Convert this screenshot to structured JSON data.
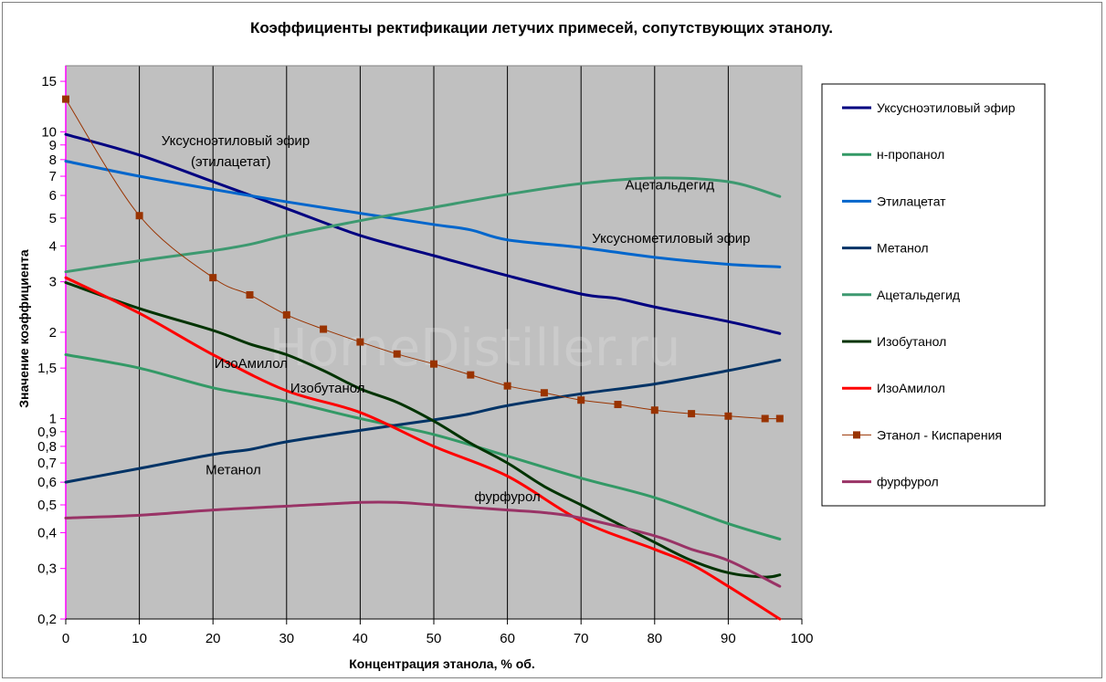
{
  "chart_data": {
    "type": "line",
    "title": "Коэффициенты ректификации летучих примесей, сопутствующих этанолу.",
    "xlabel": "Концентрация этанола, % об.",
    "ylabel": "Значение коэффициента",
    "xlim": [
      0,
      100
    ],
    "ylim": [
      0.2,
      17
    ],
    "y_scale": "log",
    "grid": "vertical lines at every 10",
    "legend": "right",
    "watermark": "HomeDistiller.ru",
    "x_ticks": [
      "0",
      "10",
      "20",
      "30",
      "40",
      "50",
      "60",
      "70",
      "80",
      "90",
      "100"
    ],
    "y_ticks": [
      {
        "v": 0.2,
        "t": "0,2"
      },
      {
        "v": 0.3,
        "t": "0,3"
      },
      {
        "v": 0.4,
        "t": "0,4"
      },
      {
        "v": 0.5,
        "t": "0,5"
      },
      {
        "v": 0.6,
        "t": "0,6"
      },
      {
        "v": 0.7,
        "t": "0,7"
      },
      {
        "v": 0.8,
        "t": "0,8"
      },
      {
        "v": 0.9,
        "t": "0,9"
      },
      {
        "v": 1,
        "t": "1"
      },
      {
        "v": 1.5,
        "t": "1,5"
      },
      {
        "v": 2,
        "t": "2"
      },
      {
        "v": 3,
        "t": "3"
      },
      {
        "v": 4,
        "t": "4"
      },
      {
        "v": 5,
        "t": "5"
      },
      {
        "v": 6,
        "t": "6"
      },
      {
        "v": 7,
        "t": "7"
      },
      {
        "v": 8,
        "t": "8"
      },
      {
        "v": 9,
        "t": "9"
      },
      {
        "v": 10,
        "t": "10"
      },
      {
        "v": 15,
        "t": "15"
      }
    ],
    "series": [
      {
        "name": "Уксусноэтиловый эфир",
        "color": "#000080",
        "width": 3,
        "x": [
          0,
          10,
          20,
          30,
          40,
          50,
          60,
          70,
          75,
          80,
          90,
          97
        ],
        "y": [
          9.8,
          8.3,
          6.7,
          5.4,
          4.35,
          3.7,
          3.15,
          2.72,
          2.62,
          2.45,
          2.18,
          1.98
        ]
      },
      {
        "name": "н-пропанол",
        "color": "#339966",
        "width": 3,
        "x": [
          0,
          10,
          20,
          30,
          40,
          50,
          60,
          70,
          80,
          90,
          97
        ],
        "y": [
          1.67,
          1.5,
          1.28,
          1.15,
          1.0,
          0.88,
          0.74,
          0.62,
          0.53,
          0.43,
          0.38
        ]
      },
      {
        "name": "Этилацетат",
        "color": "#0066CC",
        "width": 3,
        "x": [
          0,
          10,
          20,
          30,
          40,
          50,
          55,
          60,
          70,
          80,
          90,
          97
        ],
        "y": [
          7.9,
          7.0,
          6.3,
          5.7,
          5.2,
          4.75,
          4.55,
          4.2,
          3.95,
          3.65,
          3.45,
          3.38
        ]
      },
      {
        "name": "Метанол",
        "color": "#003366",
        "width": 3,
        "x": [
          0,
          10,
          20,
          25,
          30,
          40,
          50,
          55,
          60,
          70,
          80,
          90,
          97
        ],
        "y": [
          0.6,
          0.67,
          0.75,
          0.78,
          0.83,
          0.91,
          0.99,
          1.04,
          1.11,
          1.22,
          1.32,
          1.47,
          1.6
        ]
      },
      {
        "name": "Ацетальдегид",
        "color": "#3D9970",
        "width": 3,
        "x": [
          0,
          10,
          20,
          25,
          30,
          40,
          50,
          60,
          70,
          80,
          90,
          97
        ],
        "y": [
          3.25,
          3.55,
          3.85,
          4.05,
          4.35,
          4.9,
          5.45,
          6.05,
          6.6,
          6.9,
          6.7,
          5.95
        ]
      },
      {
        "name": "Изобутанол",
        "color": "#003300",
        "width": 3,
        "x": [
          0,
          10,
          20,
          25,
          30,
          35,
          40,
          45,
          50,
          55,
          60,
          65,
          70,
          75,
          80,
          85,
          90,
          95,
          97
        ],
        "y": [
          2.98,
          2.42,
          2.03,
          1.82,
          1.67,
          1.47,
          1.27,
          1.14,
          0.98,
          0.82,
          0.7,
          0.58,
          0.5,
          0.43,
          0.37,
          0.32,
          0.29,
          0.28,
          0.285
        ]
      },
      {
        "name": "ИзоАмилол",
        "color": "#FF0000",
        "width": 3,
        "x": [
          0,
          10,
          20,
          30,
          40,
          50,
          60,
          70,
          80,
          85,
          90,
          97
        ],
        "y": [
          3.1,
          2.33,
          1.67,
          1.25,
          1.05,
          0.8,
          0.63,
          0.44,
          0.35,
          0.31,
          0.26,
          0.2
        ]
      },
      {
        "name": "Этанол - Киспарения",
        "color": "#993300",
        "width": 1,
        "markers": true,
        "x": [
          0,
          10,
          20,
          25,
          30,
          35,
          40,
          45,
          50,
          55,
          60,
          65,
          70,
          75,
          80,
          85,
          90,
          95,
          97
        ],
        "y": [
          13.0,
          5.1,
          3.1,
          2.7,
          2.3,
          2.05,
          1.85,
          1.68,
          1.55,
          1.42,
          1.3,
          1.23,
          1.16,
          1.12,
          1.07,
          1.04,
          1.02,
          1.0,
          1.0
        ]
      },
      {
        "name": "фурфурол",
        "color": "#993366",
        "width": 3,
        "x": [
          0,
          10,
          20,
          30,
          40,
          45,
          50,
          60,
          65,
          70,
          80,
          85,
          90,
          97
        ],
        "y": [
          0.45,
          0.46,
          0.48,
          0.495,
          0.51,
          0.51,
          0.5,
          0.48,
          0.47,
          0.45,
          0.39,
          0.35,
          0.32,
          0.26
        ]
      }
    ],
    "annotations": [
      {
        "id": "ann-uksusnoetil",
        "text": "Уксусноэтиловый эфир",
        "x": 13,
        "y": 9.0
      },
      {
        "id": "ann-etilacetat",
        "text": "(этилацетат)",
        "x": 17,
        "y": 7.6
      },
      {
        "id": "ann-acetaldegid",
        "text": "Ацетальдегид",
        "x": 76,
        "y": 6.3
      },
      {
        "id": "ann-uksusnometil",
        "text": "Уксуснометиловый эфир",
        "x": 71.5,
        "y": 4.1
      },
      {
        "id": "ann-izoamilol",
        "text": "ИзоАмилол",
        "x": 20.2,
        "y": 1.5
      },
      {
        "id": "ann-izobutanol",
        "text": "Изобутанол",
        "x": 30.5,
        "y": 1.23
      },
      {
        "id": "ann-metanol",
        "text": "Метанол",
        "x": 19,
        "y": 0.64
      },
      {
        "id": "ann-furfurol",
        "text": "фурфурол",
        "x": 55.5,
        "y": 0.515
      }
    ]
  }
}
